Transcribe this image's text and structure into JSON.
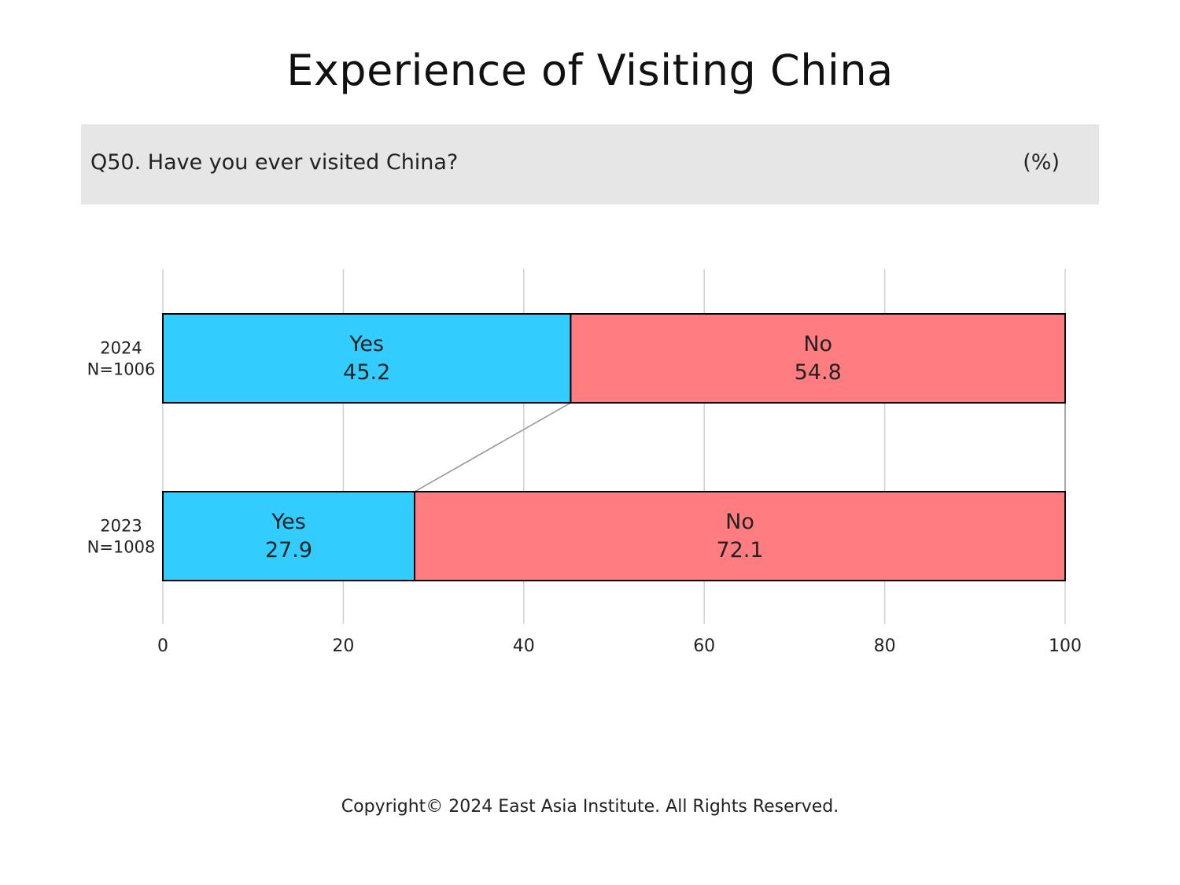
{
  "page": {
    "title": "Experience of Visiting China",
    "question": "Q50. Have you ever visited China?",
    "unit": "(%)",
    "copyright": "Copyright© 2024 East Asia Institute. All Rights Reserved."
  },
  "colors": {
    "yes": "#33ccff",
    "no": "#ff7c80",
    "gridline": "#d0d0d0",
    "connector": "#a0a0a0",
    "band": "#e7e6e6"
  },
  "chart_data": {
    "type": "bar",
    "orientation": "horizontal",
    "stacked": true,
    "categories": [
      {
        "year": "2024",
        "n": "N=1006"
      },
      {
        "year": "2023",
        "n": "N=1008"
      }
    ],
    "series": [
      {
        "name": "Yes",
        "values": [
          45.2,
          27.9
        ]
      },
      {
        "name": "No",
        "values": [
          54.8,
          72.1
        ]
      }
    ],
    "value_labels": [
      [
        "45.2",
        "27.9"
      ],
      [
        "54.8",
        "72.1"
      ]
    ],
    "xlim": [
      0,
      100
    ],
    "xticks": [
      0,
      20,
      40,
      60,
      80,
      100
    ],
    "grid": "vertical",
    "legend": "none",
    "connector_lines": true
  }
}
